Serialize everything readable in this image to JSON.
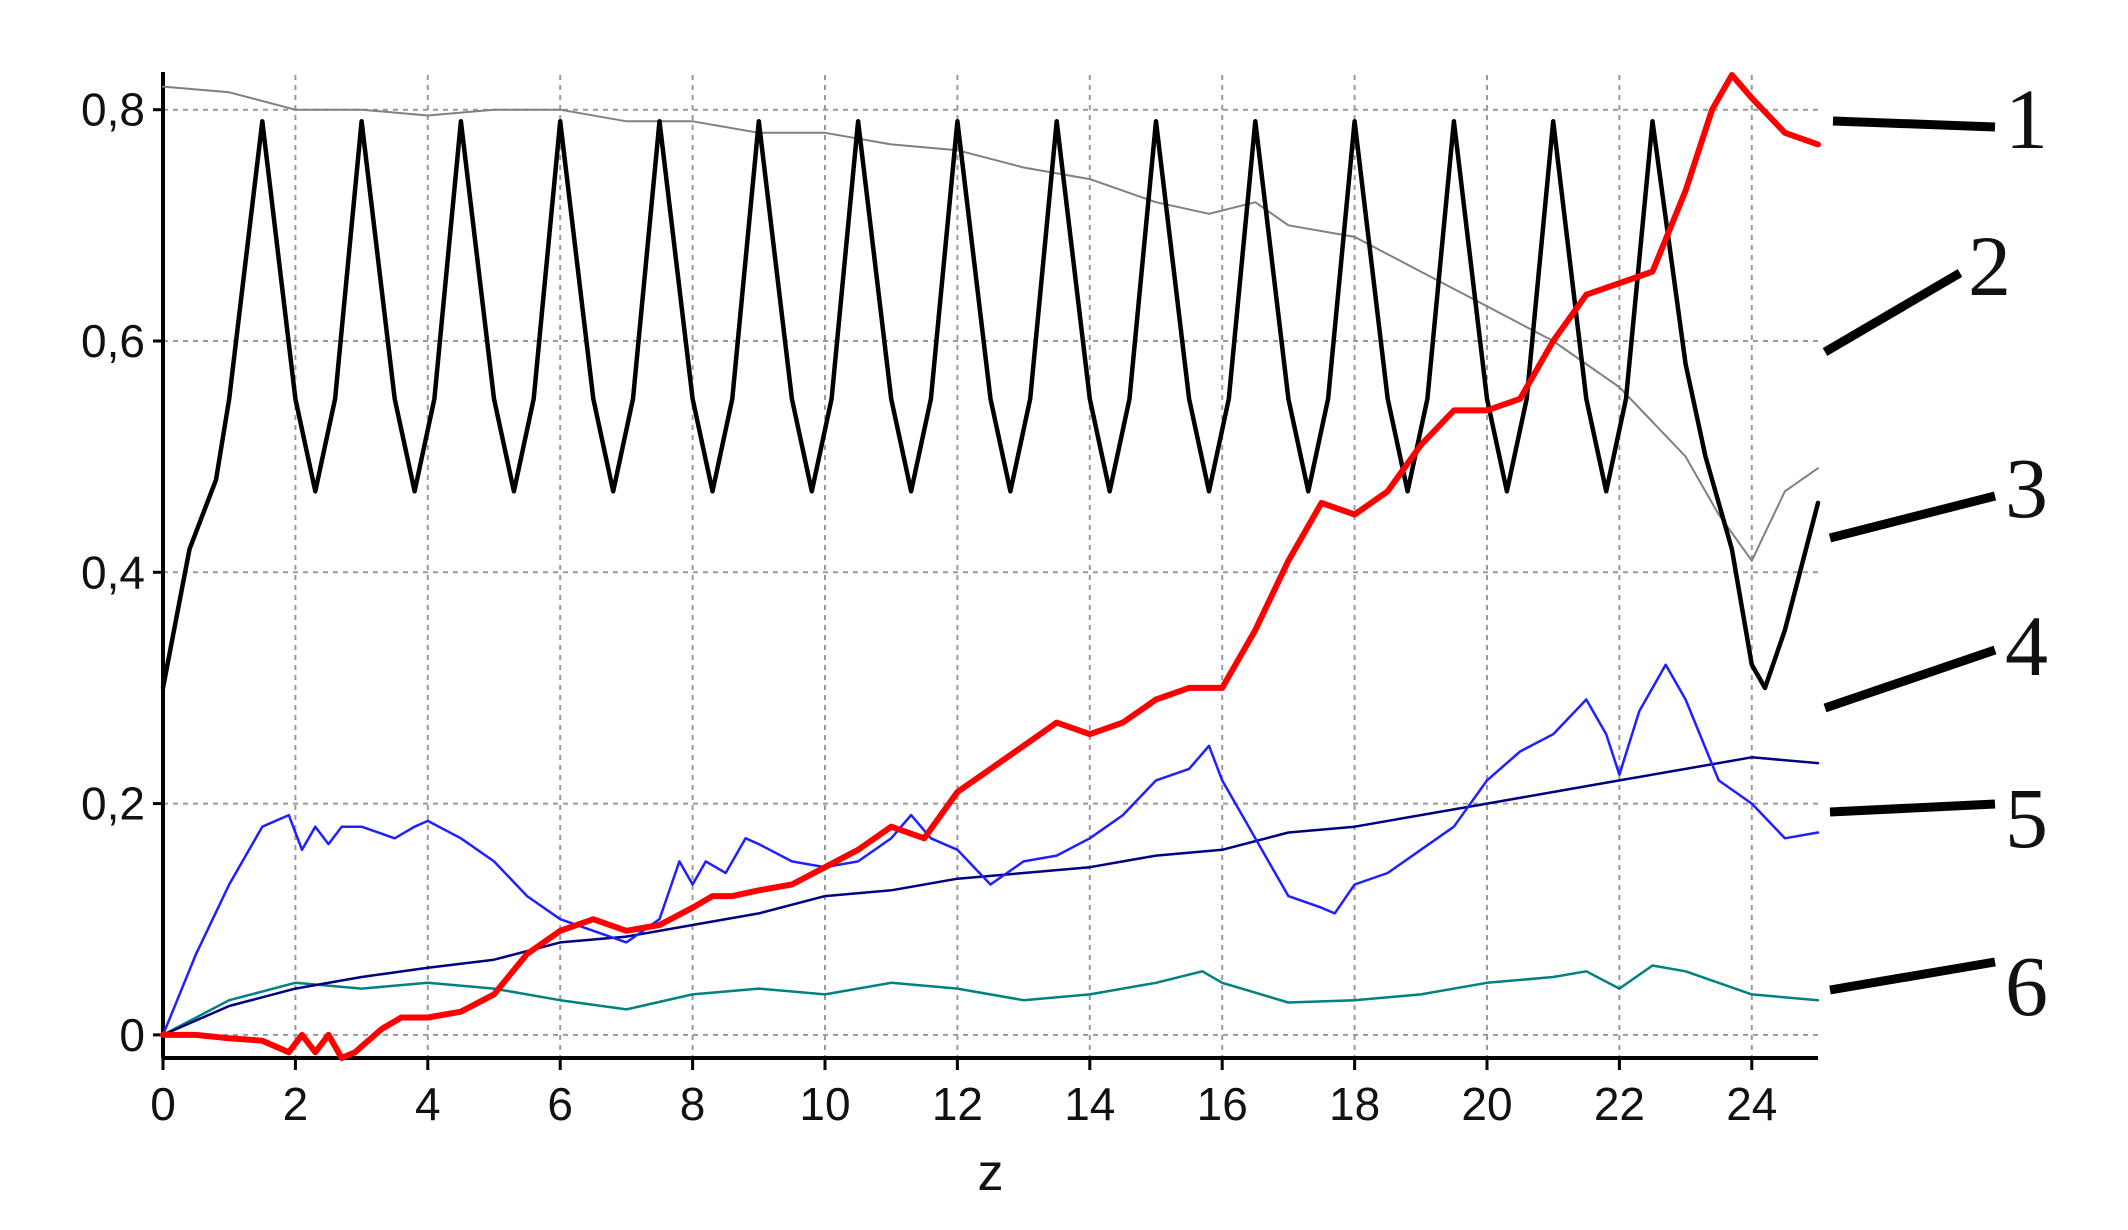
{
  "chart_data": {
    "type": "line",
    "title": "",
    "xlabel": "z",
    "ylabel": "",
    "xlim": [
      0,
      25
    ],
    "ylim": [
      -0.02,
      0.83
    ],
    "grid": true,
    "x_ticks": [
      0,
      2,
      4,
      6,
      8,
      10,
      12,
      14,
      16,
      18,
      20,
      22,
      24
    ],
    "x_tick_labels": [
      "0",
      "2",
      "4",
      "6",
      "8",
      "10",
      "12",
      "14",
      "16",
      "18",
      "20",
      "22",
      "24"
    ],
    "y_ticks": [
      0,
      0.2,
      0.4,
      0.6,
      0.8
    ],
    "y_tick_labels": [
      "0",
      "0,2",
      "0,4",
      "0,6",
      "0,8"
    ],
    "curve_labels": [
      "1",
      "2",
      "3",
      "4",
      "5",
      "6"
    ],
    "series": [
      {
        "label": "1",
        "color": "#ff0000",
        "x": [
          0,
          0.5,
          1,
          1.5,
          1.9,
          2.1,
          2.3,
          2.5,
          2.7,
          2.9,
          3.3,
          3.6,
          4,
          4.5,
          5,
          5.5,
          6,
          6.5,
          7,
          7.5,
          8,
          8.3,
          8.6,
          9,
          9.5,
          10,
          10.5,
          11,
          11.5,
          12,
          12.5,
          13,
          13.5,
          14,
          14.5,
          15,
          15.5,
          16,
          16.5,
          17,
          17.5,
          18,
          18.5,
          19,
          19.5,
          20,
          20.5,
          21,
          21.5,
          22,
          22.5,
          23,
          23.4,
          23.7,
          24,
          24.5,
          25
        ],
        "y": [
          0,
          0,
          -0.003,
          -0.005,
          -0.015,
          0,
          -0.015,
          0,
          -0.02,
          -0.015,
          0.005,
          0.015,
          0.015,
          0.02,
          0.035,
          0.07,
          0.09,
          0.1,
          0.09,
          0.095,
          0.11,
          0.12,
          0.12,
          0.125,
          0.13,
          0.145,
          0.16,
          0.18,
          0.17,
          0.21,
          0.23,
          0.25,
          0.27,
          0.26,
          0.27,
          0.29,
          0.3,
          0.3,
          0.35,
          0.41,
          0.46,
          0.45,
          0.47,
          0.51,
          0.54,
          0.54,
          0.55,
          0.6,
          0.64,
          0.65,
          0.66,
          0.73,
          0.8,
          0.83,
          0.81,
          0.78,
          0.77
        ]
      },
      {
        "label": "2",
        "color": "#808080",
        "x": [
          0,
          1,
          2,
          3,
          4,
          5,
          6,
          7,
          8,
          9,
          10,
          11,
          12,
          13,
          14,
          15,
          15.8,
          16.5,
          17,
          18,
          19,
          20,
          21,
          22,
          23,
          23.5,
          24,
          24.5,
          25
        ],
        "y": [
          0.82,
          0.815,
          0.8,
          0.8,
          0.795,
          0.8,
          0.8,
          0.79,
          0.79,
          0.78,
          0.78,
          0.77,
          0.765,
          0.75,
          0.74,
          0.72,
          0.71,
          0.72,
          0.7,
          0.69,
          0.66,
          0.63,
          0.6,
          0.56,
          0.5,
          0.45,
          0.41,
          0.47,
          0.49
        ]
      },
      {
        "label": "3",
        "color": "#000000",
        "x": [
          0,
          0.4,
          0.8,
          1.0,
          1.5,
          2.0,
          2.3,
          2.6,
          3.0,
          3.5,
          3.8,
          4.1,
          4.5,
          5.0,
          5.3,
          5.6,
          6.0,
          6.5,
          6.8,
          7.1,
          7.5,
          8.0,
          8.3,
          8.6,
          9.0,
          9.5,
          9.8,
          10.1,
          10.5,
          11.0,
          11.3,
          11.6,
          12.0,
          12.5,
          12.8,
          13.1,
          13.5,
          14.0,
          14.3,
          14.6,
          15.0,
          15.5,
          15.8,
          16.1,
          16.5,
          17.0,
          17.3,
          17.6,
          18.0,
          18.5,
          18.8,
          19.1,
          19.5,
          20.0,
          20.3,
          20.6,
          21.0,
          21.5,
          21.8,
          22.1,
          22.5,
          23.0,
          23.3,
          23.7,
          24.0,
          24.2,
          24.5,
          25
        ],
        "y": [
          0.3,
          0.42,
          0.48,
          0.55,
          0.79,
          0.55,
          0.47,
          0.55,
          0.79,
          0.55,
          0.47,
          0.55,
          0.79,
          0.55,
          0.47,
          0.55,
          0.79,
          0.55,
          0.47,
          0.55,
          0.79,
          0.55,
          0.47,
          0.55,
          0.79,
          0.55,
          0.47,
          0.55,
          0.79,
          0.55,
          0.47,
          0.55,
          0.79,
          0.55,
          0.47,
          0.55,
          0.79,
          0.55,
          0.47,
          0.55,
          0.79,
          0.55,
          0.47,
          0.55,
          0.79,
          0.55,
          0.47,
          0.55,
          0.79,
          0.55,
          0.47,
          0.55,
          0.79,
          0.55,
          0.47,
          0.55,
          0.79,
          0.55,
          0.47,
          0.55,
          0.79,
          0.58,
          0.5,
          0.42,
          0.32,
          0.3,
          0.35,
          0.46
        ]
      },
      {
        "label": "4",
        "color": "#2020ff",
        "x": [
          0,
          0.5,
          1,
          1.5,
          1.9,
          2.1,
          2.3,
          2.5,
          2.7,
          3,
          3.5,
          3.8,
          4,
          4.5,
          5,
          5.5,
          6,
          6.5,
          7,
          7.5,
          7.8,
          8,
          8.2,
          8.5,
          8.8,
          9,
          9.5,
          10,
          10.5,
          11,
          11.3,
          11.6,
          12,
          12.5,
          13,
          13.5,
          14,
          14.5,
          15,
          15.5,
          15.8,
          16,
          16.5,
          17,
          17.5,
          17.7,
          18,
          18.5,
          19,
          19.5,
          20,
          20.5,
          21,
          21.5,
          21.8,
          22,
          22.3,
          22.7,
          23,
          23.5,
          24,
          24.5,
          25
        ],
        "y": [
          0,
          0.07,
          0.13,
          0.18,
          0.19,
          0.16,
          0.18,
          0.165,
          0.18,
          0.18,
          0.17,
          0.18,
          0.185,
          0.17,
          0.15,
          0.12,
          0.1,
          0.09,
          0.08,
          0.1,
          0.15,
          0.13,
          0.15,
          0.14,
          0.17,
          0.165,
          0.15,
          0.145,
          0.15,
          0.17,
          0.19,
          0.17,
          0.16,
          0.13,
          0.15,
          0.155,
          0.17,
          0.19,
          0.22,
          0.23,
          0.25,
          0.22,
          0.17,
          0.12,
          0.11,
          0.105,
          0.13,
          0.14,
          0.16,
          0.18,
          0.22,
          0.245,
          0.26,
          0.29,
          0.26,
          0.225,
          0.28,
          0.32,
          0.29,
          0.22,
          0.2,
          0.17,
          0.175
        ]
      },
      {
        "label": "5",
        "color": "#000080",
        "x": [
          0,
          1,
          2,
          3,
          4,
          5,
          6,
          7,
          8,
          9,
          10,
          11,
          12,
          13,
          14,
          15,
          16,
          17,
          18,
          19,
          20,
          21,
          22,
          23,
          24,
          25
        ],
        "y": [
          0,
          0.025,
          0.04,
          0.05,
          0.058,
          0.065,
          0.08,
          0.085,
          0.095,
          0.105,
          0.12,
          0.125,
          0.135,
          0.14,
          0.145,
          0.155,
          0.16,
          0.175,
          0.18,
          0.19,
          0.2,
          0.21,
          0.22,
          0.23,
          0.24,
          0.235
        ]
      },
      {
        "label": "6",
        "color": "#008080",
        "x": [
          0,
          1,
          2,
          3,
          4,
          5,
          6,
          7,
          8,
          9,
          10,
          11,
          12,
          13,
          14,
          15,
          15.7,
          16,
          17,
          18,
          19,
          20,
          21,
          21.5,
          22,
          22.5,
          23,
          24,
          25
        ],
        "y": [
          0,
          0.03,
          0.045,
          0.04,
          0.045,
          0.04,
          0.03,
          0.022,
          0.035,
          0.04,
          0.035,
          0.045,
          0.04,
          0.03,
          0.035,
          0.045,
          0.055,
          0.045,
          0.028,
          0.03,
          0.035,
          0.045,
          0.05,
          0.055,
          0.04,
          0.06,
          0.055,
          0.035,
          0.03
        ]
      }
    ]
  }
}
